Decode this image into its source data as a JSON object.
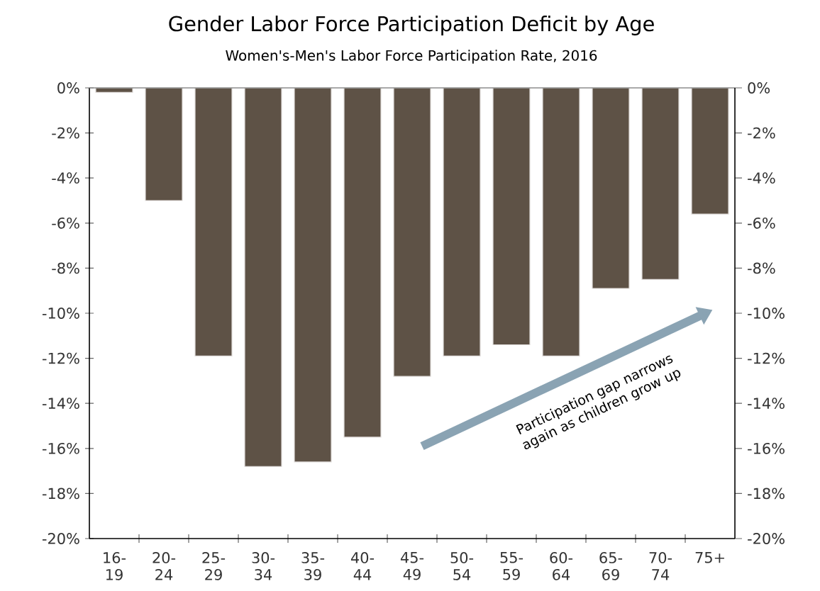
{
  "chart_data": {
    "type": "bar",
    "title": "Gender Labor Force Participation Deficit by Age",
    "subtitle": "Women's-Men's Labor Force Participation Rate, 2016",
    "categories": [
      "16-19",
      "20-24",
      "25-29",
      "30-34",
      "35-39",
      "40-44",
      "45-49",
      "50-54",
      "55-59",
      "60-64",
      "65-69",
      "70-74",
      "75+"
    ],
    "values": [
      -0.2,
      -5.0,
      -11.9,
      -16.8,
      -16.6,
      -15.5,
      -12.8,
      -11.9,
      -11.4,
      -11.9,
      -8.9,
      -8.5,
      -5.6
    ],
    "color": "#5e5246",
    "ylim": [
      -20,
      0
    ],
    "yticks": [
      {
        "value": 0,
        "label": "0%"
      },
      {
        "value": -2,
        "label": "-2%"
      },
      {
        "value": -4,
        "label": "-4%"
      },
      {
        "value": -6,
        "label": "-6%"
      },
      {
        "value": -8,
        "label": "-8%"
      },
      {
        "value": -10,
        "label": "-10%"
      },
      {
        "value": -12,
        "label": "-12%"
      },
      {
        "value": -14,
        "label": "-14%"
      },
      {
        "value": -16,
        "label": "-16%"
      },
      {
        "value": -18,
        "label": "-18%"
      },
      {
        "value": -20,
        "label": "-20%"
      }
    ],
    "y2lim": [
      -20,
      0
    ],
    "y2ticks": [
      {
        "value": 0,
        "label": "0%"
      },
      {
        "value": -2,
        "label": "-2%"
      },
      {
        "value": -4,
        "label": "-4%"
      },
      {
        "value": -6,
        "label": "-6%"
      },
      {
        "value": -8,
        "label": "-8%"
      },
      {
        "value": -10,
        "label": "-10%"
      },
      {
        "value": -12,
        "label": "-12%"
      },
      {
        "value": -14,
        "label": "-14%"
      },
      {
        "value": -16,
        "label": "-16%"
      },
      {
        "value": -18,
        "label": "-18%"
      },
      {
        "value": -20,
        "label": "-20%"
      }
    ],
    "annotations": [
      "Participation gap narrows again as children grow up"
    ],
    "grid": false
  }
}
